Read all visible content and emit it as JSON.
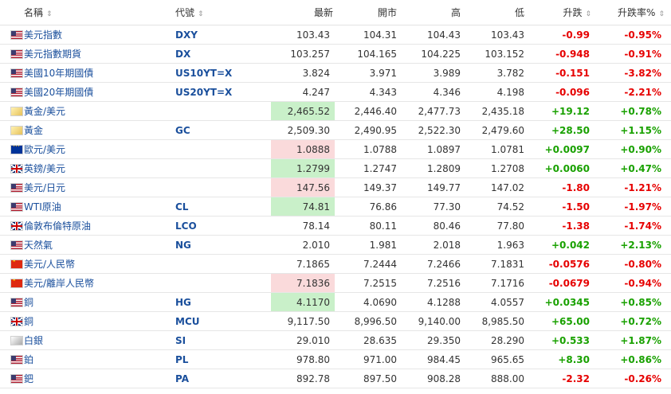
{
  "headers": {
    "name": "名稱",
    "symbol": "代號",
    "last": "最新",
    "open": "開市",
    "high": "高",
    "low": "低",
    "change": "升跌",
    "change_pct": "升跌率%",
    "sort_icon": "⇕"
  },
  "colors": {
    "positive": "#19a100",
    "negative": "#e60000",
    "link": "#1a4f9c",
    "highlight_up": "#c9f0c9",
    "highlight_down": "#fadadb"
  },
  "rows": [
    {
      "flag": "us",
      "name": "美元指數",
      "symbol": "DXY",
      "last": "103.43",
      "open": "104.31",
      "high": "104.43",
      "low": "103.43",
      "change": "-0.99",
      "change_pct": "-0.95%",
      "dir": "neg",
      "hl": ""
    },
    {
      "flag": "us",
      "name": "美元指數期貨",
      "symbol": "DX",
      "last": "103.257",
      "open": "104.165",
      "high": "104.225",
      "low": "103.152",
      "change": "-0.948",
      "change_pct": "-0.91%",
      "dir": "neg",
      "hl": ""
    },
    {
      "flag": "us",
      "name": "美國10年期國債",
      "symbol": "US10YT=X",
      "last": "3.824",
      "open": "3.971",
      "high": "3.989",
      "low": "3.782",
      "change": "-0.151",
      "change_pct": "-3.82%",
      "dir": "neg",
      "hl": ""
    },
    {
      "flag": "us",
      "name": "美國20年期國債",
      "symbol": "US20YT=X",
      "last": "4.247",
      "open": "4.343",
      "high": "4.346",
      "low": "4.198",
      "change": "-0.096",
      "change_pct": "-2.21%",
      "dir": "neg",
      "hl": ""
    },
    {
      "flag": "gold",
      "name": "黃金/美元",
      "symbol": "",
      "last": "2,465.52",
      "open": "2,446.40",
      "high": "2,477.73",
      "low": "2,435.18",
      "change": "+19.12",
      "change_pct": "+0.78%",
      "dir": "pos",
      "hl": "up"
    },
    {
      "flag": "gold",
      "name": "黃金",
      "symbol": "GC",
      "last": "2,509.30",
      "open": "2,490.95",
      "high": "2,522.30",
      "low": "2,479.60",
      "change": "+28.50",
      "change_pct": "+1.15%",
      "dir": "pos",
      "hl": ""
    },
    {
      "flag": "eu",
      "name": "歐元/美元",
      "symbol": "",
      "last": "1.0888",
      "open": "1.0788",
      "high": "1.0897",
      "low": "1.0781",
      "change": "+0.0097",
      "change_pct": "+0.90%",
      "dir": "pos",
      "hl": "down"
    },
    {
      "flag": "gb",
      "name": "英鎊/美元",
      "symbol": "",
      "last": "1.2799",
      "open": "1.2747",
      "high": "1.2809",
      "low": "1.2708",
      "change": "+0.0060",
      "change_pct": "+0.47%",
      "dir": "pos",
      "hl": "up"
    },
    {
      "flag": "us",
      "name": "美元/日元",
      "symbol": "",
      "last": "147.56",
      "open": "149.37",
      "high": "149.77",
      "low": "147.02",
      "change": "-1.80",
      "change_pct": "-1.21%",
      "dir": "neg",
      "hl": "down"
    },
    {
      "flag": "us",
      "name": "WTI原油",
      "symbol": "CL",
      "last": "74.81",
      "open": "76.86",
      "high": "77.30",
      "low": "74.52",
      "change": "-1.50",
      "change_pct": "-1.97%",
      "dir": "neg",
      "hl": "up"
    },
    {
      "flag": "gb",
      "name": "倫敦布倫特原油",
      "symbol": "LCO",
      "last": "78.14",
      "open": "80.11",
      "high": "80.46",
      "low": "77.80",
      "change": "-1.38",
      "change_pct": "-1.74%",
      "dir": "neg",
      "hl": ""
    },
    {
      "flag": "us",
      "name": "天然氣",
      "symbol": "NG",
      "last": "2.010",
      "open": "1.981",
      "high": "2.018",
      "low": "1.963",
      "change": "+0.042",
      "change_pct": "+2.13%",
      "dir": "pos",
      "hl": ""
    },
    {
      "flag": "cn",
      "name": "美元/人民幣",
      "symbol": "",
      "last": "7.1865",
      "open": "7.2444",
      "high": "7.2466",
      "low": "7.1831",
      "change": "-0.0576",
      "change_pct": "-0.80%",
      "dir": "neg",
      "hl": ""
    },
    {
      "flag": "cn",
      "name": "美元/離岸人民幣",
      "symbol": "",
      "last": "7.1836",
      "open": "7.2515",
      "high": "7.2516",
      "low": "7.1716",
      "change": "-0.0679",
      "change_pct": "-0.94%",
      "dir": "neg",
      "hl": "down"
    },
    {
      "flag": "us",
      "name": "銅",
      "symbol": "HG",
      "last": "4.1170",
      "open": "4.0690",
      "high": "4.1288",
      "low": "4.0557",
      "change": "+0.0345",
      "change_pct": "+0.85%",
      "dir": "pos",
      "hl": "up"
    },
    {
      "flag": "gb",
      "name": "銅",
      "symbol": "MCU",
      "last": "9,117.50",
      "open": "8,996.50",
      "high": "9,140.00",
      "low": "8,985.50",
      "change": "+65.00",
      "change_pct": "+0.72%",
      "dir": "pos",
      "hl": ""
    },
    {
      "flag": "silver",
      "name": "白銀",
      "symbol": "SI",
      "last": "29.010",
      "open": "28.635",
      "high": "29.350",
      "low": "28.290",
      "change": "+0.533",
      "change_pct": "+1.87%",
      "dir": "pos",
      "hl": ""
    },
    {
      "flag": "us",
      "name": "鉑",
      "symbol": "PL",
      "last": "978.80",
      "open": "971.00",
      "high": "984.45",
      "low": "965.65",
      "change": "+8.30",
      "change_pct": "+0.86%",
      "dir": "pos",
      "hl": ""
    },
    {
      "flag": "us",
      "name": "鈀",
      "symbol": "PA",
      "last": "892.78",
      "open": "897.50",
      "high": "908.28",
      "low": "888.00",
      "change": "-2.32",
      "change_pct": "-0.26%",
      "dir": "neg",
      "hl": ""
    }
  ]
}
